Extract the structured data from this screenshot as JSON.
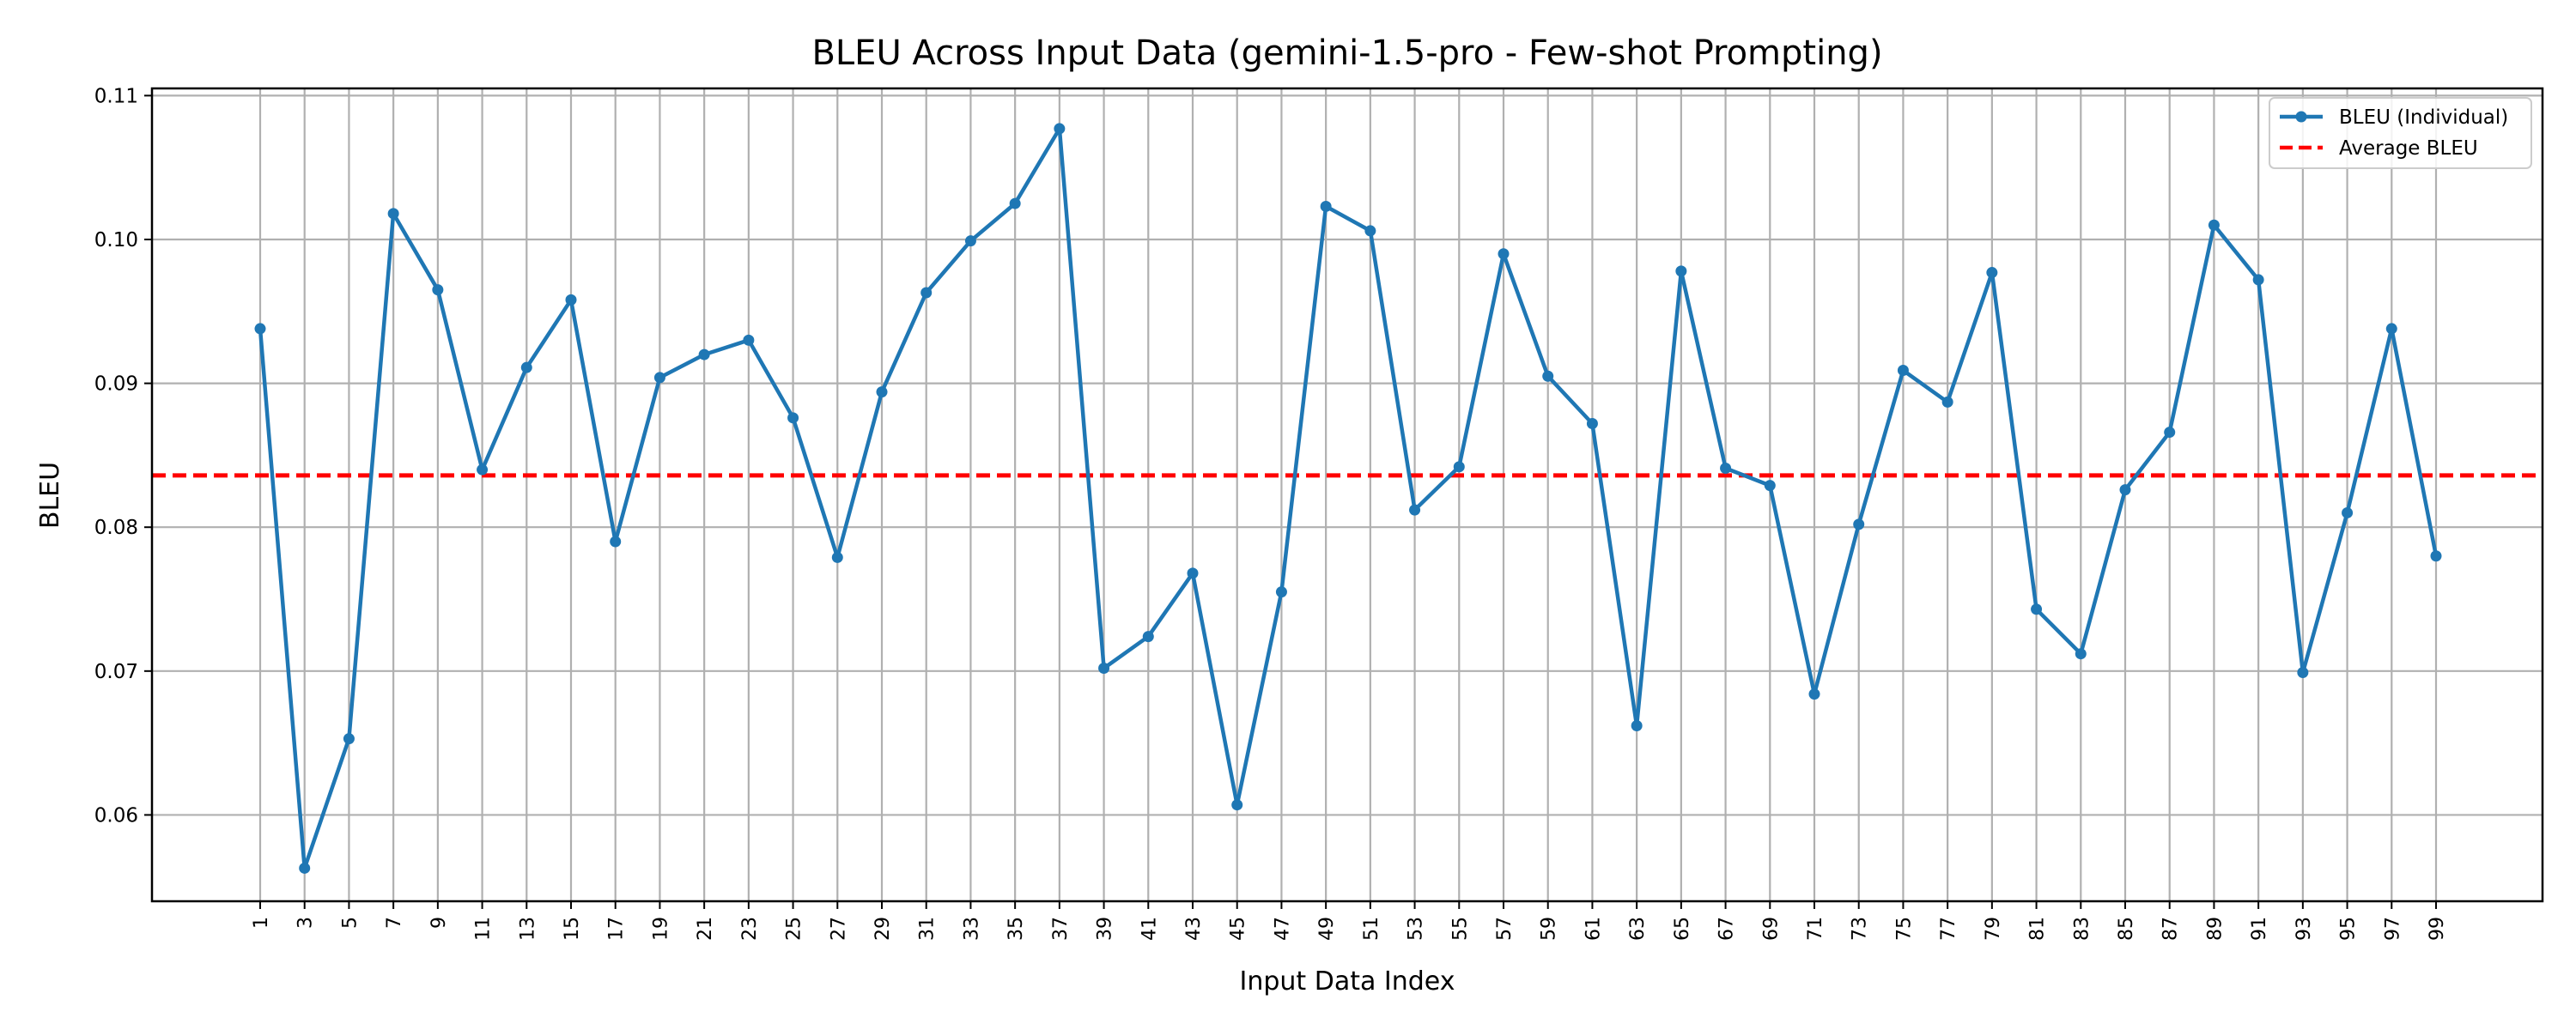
{
  "chart_data": {
    "type": "line",
    "title": "BLEU Across Input Data (gemini-1.5-pro - Few-shot Prompting)",
    "xlabel": "Input Data Index",
    "ylabel": "BLEU",
    "x": [
      1,
      3,
      5,
      7,
      9,
      11,
      13,
      15,
      17,
      19,
      21,
      23,
      25,
      27,
      29,
      31,
      33,
      35,
      37,
      39,
      41,
      43,
      45,
      47,
      49,
      51,
      53,
      55,
      57,
      59,
      61,
      63,
      65,
      67,
      69,
      71,
      73,
      75,
      77,
      79,
      81,
      83,
      85,
      87,
      89,
      91,
      93,
      95,
      97,
      99
    ],
    "x_tick_labels": [
      "1",
      "3",
      "5",
      "7",
      "9",
      "11",
      "13",
      "15",
      "17",
      "19",
      "21",
      "23",
      "25",
      "27",
      "29",
      "31",
      "33",
      "35",
      "37",
      "39",
      "41",
      "43",
      "45",
      "47",
      "49",
      "51",
      "53",
      "55",
      "57",
      "59",
      "61",
      "63",
      "65",
      "67",
      "69",
      "71",
      "73",
      "75",
      "77",
      "79",
      "81",
      "83",
      "85",
      "87",
      "89",
      "91",
      "93",
      "95",
      "97",
      "99"
    ],
    "y_ticks": [
      0.06,
      0.07,
      0.08,
      0.09,
      0.1,
      0.11
    ],
    "y_tick_labels": [
      "0.06",
      "0.07",
      "0.08",
      "0.09",
      "0.10",
      "0.11"
    ],
    "ylim": [
      0.054,
      0.1105
    ],
    "grid": true,
    "legend_position": "top-right",
    "series": [
      {
        "name": "BLEU (Individual)",
        "style": "solid line with circle markers",
        "color": "#1f77b4",
        "values": [
          0.0938,
          0.0563,
          0.0653,
          0.1018,
          0.0965,
          0.084,
          0.0911,
          0.0958,
          0.079,
          0.0904,
          0.092,
          0.093,
          0.0876,
          0.0779,
          0.0894,
          0.0963,
          0.0999,
          0.1025,
          0.1077,
          0.0702,
          0.0724,
          0.0768,
          0.0607,
          0.0755,
          0.1023,
          0.1006,
          0.0812,
          0.0842,
          0.099,
          0.0905,
          0.0872,
          0.0662,
          0.0978,
          0.0841,
          0.0829,
          0.0684,
          0.0802,
          0.0909,
          0.0887,
          0.0977,
          0.0743,
          0.0712,
          0.0826,
          0.0866,
          0.101,
          0.0972,
          0.0699,
          0.081,
          0.0938,
          0.078
        ]
      },
      {
        "name": "Average BLEU",
        "style": "dashed horizontal line",
        "color": "#ff0000",
        "value": 0.0836
      }
    ]
  }
}
